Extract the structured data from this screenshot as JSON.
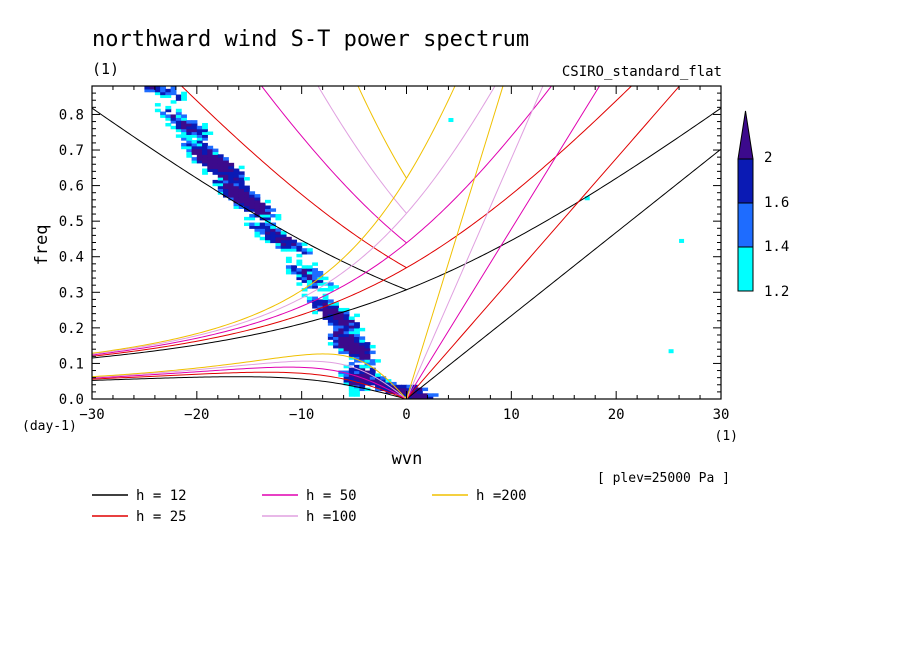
{
  "chart_data": {
    "type": "heatmap",
    "title": "northward wind S-T power spectrum",
    "subtitle_left": "(1)",
    "subtitle_right": "CSIRO_standard_flat",
    "xlabel": "wvn",
    "ylabel": "freq",
    "x_unit": "(1)",
    "y_unit": "(day-1)",
    "xlim": [
      -30,
      30
    ],
    "ylim": [
      0,
      0.88
    ],
    "x_ticks": [
      -30,
      -20,
      -10,
      0,
      10,
      20,
      30
    ],
    "x_tick_labels": [
      "−30",
      "−20",
      "−10",
      "0",
      "10",
      "20",
      "30"
    ],
    "y_ticks": [
      0,
      0.1,
      0.2,
      0.3,
      0.4,
      0.5,
      0.6,
      0.7,
      0.8
    ],
    "y_tick_labels": [
      "0.0",
      "0.1",
      "0.2",
      "0.3",
      "0.4",
      "0.5",
      "0.6",
      "0.7",
      "0.8"
    ],
    "annotation": "[ plev=25000 Pa ]",
    "colorbar": {
      "levels": [
        1.2,
        1.4,
        1.6,
        2
      ],
      "labels": [
        "1.2",
        "1.4",
        "1.6",
        "2"
      ],
      "colors": [
        "#00ffff",
        "#1e6cff",
        "#0a1ab4",
        "#3c0a8c"
      ]
    },
    "dispersion_curves": [
      {
        "h": 12,
        "label": "h = 12",
        "color": "#000000"
      },
      {
        "h": 25,
        "label": "h = 25",
        "color": "#e00000"
      },
      {
        "h": 50,
        "label": "h = 50",
        "color": "#e000b0"
      },
      {
        "h": 100,
        "label": "h =100",
        "color": "#e0a0e0"
      },
      {
        "h": 200,
        "label": "h =200",
        "color": "#f0c000"
      }
    ],
    "power_ridge": {
      "description_points_wvn_freq": [
        [
          -24,
          0.88
        ],
        [
          -21,
          0.78
        ],
        [
          -18,
          0.66
        ],
        [
          -16,
          0.58
        ],
        [
          -14,
          0.5
        ],
        [
          -12,
          0.44
        ],
        [
          -10,
          0.38
        ],
        [
          -8,
          0.3
        ],
        [
          -6,
          0.22
        ],
        [
          -5,
          0.12
        ],
        [
          -4,
          0.06
        ],
        [
          -1,
          0.02
        ],
        [
          1,
          0.02
        ]
      ]
    }
  }
}
